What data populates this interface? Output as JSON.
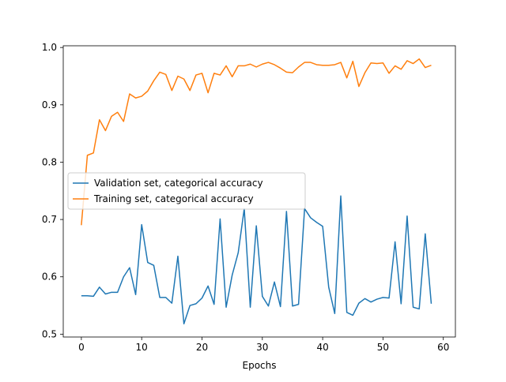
{
  "chart_data": {
    "type": "line",
    "title": "",
    "xlabel": "Epochs",
    "ylabel": "",
    "xlim": [
      -3,
      62
    ],
    "ylim": [
      0.495,
      1.003
    ],
    "xticks": [
      0,
      10,
      20,
      30,
      40,
      50,
      60
    ],
    "yticks": [
      0.5,
      0.6,
      0.7,
      0.8,
      0.9,
      1.0
    ],
    "xtick_labels": [
      "0",
      "10",
      "20",
      "30",
      "40",
      "50",
      "60"
    ],
    "ytick_labels": [
      "0.5",
      "0.6",
      "0.7",
      "0.8",
      "0.9",
      "1.0"
    ],
    "grid": false,
    "legend_position": "center-left",
    "x": [
      0,
      1,
      2,
      3,
      4,
      5,
      6,
      7,
      8,
      9,
      10,
      11,
      12,
      13,
      14,
      15,
      16,
      17,
      18,
      19,
      20,
      21,
      22,
      23,
      24,
      25,
      26,
      27,
      28,
      29,
      30,
      31,
      32,
      33,
      34,
      35,
      36,
      37,
      38,
      39,
      40,
      41,
      42,
      43,
      44,
      45,
      46,
      47,
      48,
      49,
      50,
      51,
      52,
      53,
      54,
      55,
      56,
      57,
      58
    ],
    "series": [
      {
        "name": "Validation set, categorical accuracy",
        "color": "#1f77b4",
        "values": [
          0.567,
          0.567,
          0.566,
          0.582,
          0.57,
          0.573,
          0.573,
          0.6,
          0.616,
          0.569,
          0.691,
          0.625,
          0.62,
          0.564,
          0.564,
          0.554,
          0.636,
          0.518,
          0.55,
          0.553,
          0.563,
          0.584,
          0.552,
          0.701,
          0.547,
          0.603,
          0.642,
          0.719,
          0.547,
          0.689,
          0.566,
          0.549,
          0.591,
          0.548,
          0.714,
          0.549,
          0.552,
          0.719,
          0.703,
          0.695,
          0.688,
          0.582,
          0.536,
          0.741,
          0.538,
          0.533,
          0.554,
          0.562,
          0.556,
          0.561,
          0.564,
          0.563,
          0.661,
          0.553,
          0.706,
          0.547,
          0.544,
          0.675,
          0.553
        ]
      },
      {
        "name": "Training set, categorical accuracy",
        "color": "#ff7f0e",
        "values": [
          0.69,
          0.812,
          0.816,
          0.874,
          0.855,
          0.88,
          0.887,
          0.871,
          0.919,
          0.912,
          0.915,
          0.924,
          0.942,
          0.957,
          0.953,
          0.925,
          0.95,
          0.945,
          0.925,
          0.952,
          0.955,
          0.921,
          0.955,
          0.952,
          0.968,
          0.949,
          0.968,
          0.968,
          0.971,
          0.966,
          0.971,
          0.974,
          0.97,
          0.964,
          0.957,
          0.956,
          0.966,
          0.974,
          0.974,
          0.97,
          0.969,
          0.969,
          0.97,
          0.974,
          0.947,
          0.976,
          0.932,
          0.956,
          0.973,
          0.972,
          0.973,
          0.955,
          0.968,
          0.962,
          0.977,
          0.972,
          0.98,
          0.965,
          0.969
        ]
      }
    ]
  }
}
